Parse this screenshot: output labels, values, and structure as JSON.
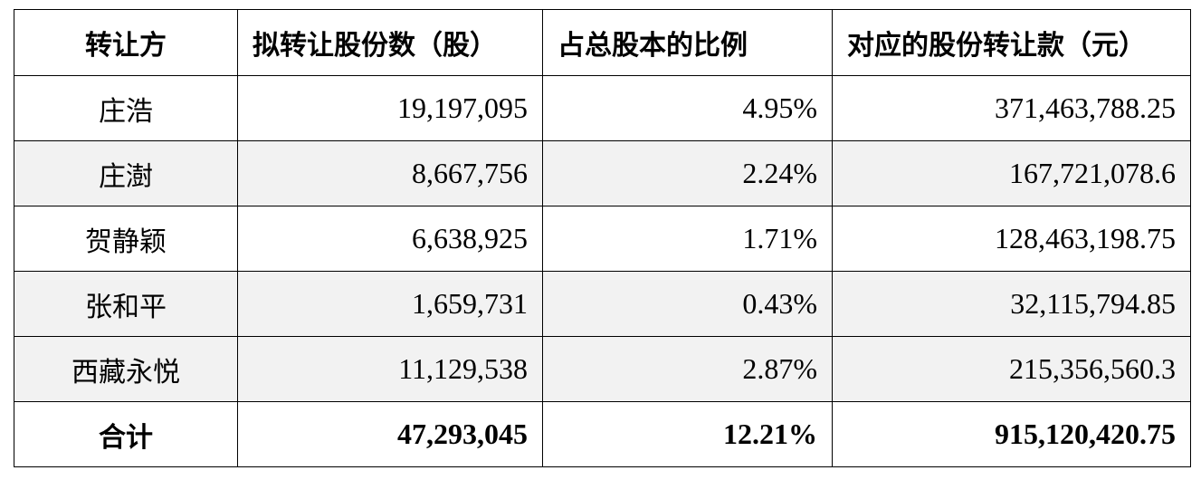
{
  "table": {
    "headers": {
      "transferor": "转让方",
      "shares": "拟转让股份数（股）",
      "ratio": "占总股本的比例",
      "amount": "对应的股份转让款（元）"
    },
    "rows": [
      {
        "name": "庄浩",
        "shares": "19,197,095",
        "ratio": "4.95%",
        "amount": "371,463,788.25"
      },
      {
        "name": "庄澍",
        "shares": "8,667,756",
        "ratio": "2.24%",
        "amount": "167,721,078.6"
      },
      {
        "name": "贺静颖",
        "shares": "6,638,925",
        "ratio": "1.71%",
        "amount": "128,463,198.75"
      },
      {
        "name": "张和平",
        "shares": "1,659,731",
        "ratio": "0.43%",
        "amount": "32,115,794.85"
      },
      {
        "name": "西藏永悦",
        "shares": "11,129,538",
        "ratio": "2.87%",
        "amount": "215,356,560.3"
      }
    ],
    "total": {
      "name": "合计",
      "shares": "47,293,045",
      "ratio": "12.21%",
      "amount": "915,120,420.75"
    }
  }
}
